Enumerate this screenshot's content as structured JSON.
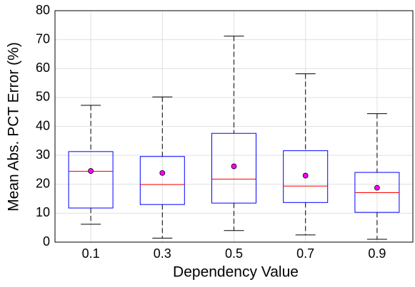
{
  "chart_data": {
    "type": "box",
    "xlabel": "Dependency Value",
    "ylabel": "Mean Abs. PCT Error (%)",
    "categories": [
      "0.1",
      "0.3",
      "0.5",
      "0.7",
      "0.9"
    ],
    "boxes": [
      {
        "low": 6.2,
        "q1": 11.8,
        "median": 24.5,
        "q3": 31.3,
        "high": 47.3,
        "mean": 24.6
      },
      {
        "low": 1.4,
        "q1": 13.0,
        "median": 19.9,
        "q3": 29.6,
        "high": 50.2,
        "mean": 23.9
      },
      {
        "low": 4.0,
        "q1": 13.5,
        "median": 21.8,
        "q3": 37.6,
        "high": 71.2,
        "mean": 26.2
      },
      {
        "low": 2.5,
        "q1": 13.7,
        "median": 19.4,
        "q3": 31.6,
        "high": 58.2,
        "mean": 23.0
      },
      {
        "low": 1.0,
        "q1": 10.3,
        "median": 17.1,
        "q3": 24.1,
        "high": 44.4,
        "mean": 18.8
      }
    ],
    "box_color": "#0000ff",
    "median_color": "#ff0000",
    "mean_color": "#ff00ff",
    "ylim": [
      0,
      80
    ],
    "yticks": [
      0,
      10,
      20,
      30,
      40,
      50,
      60,
      70,
      80
    ],
    "grid": true
  }
}
